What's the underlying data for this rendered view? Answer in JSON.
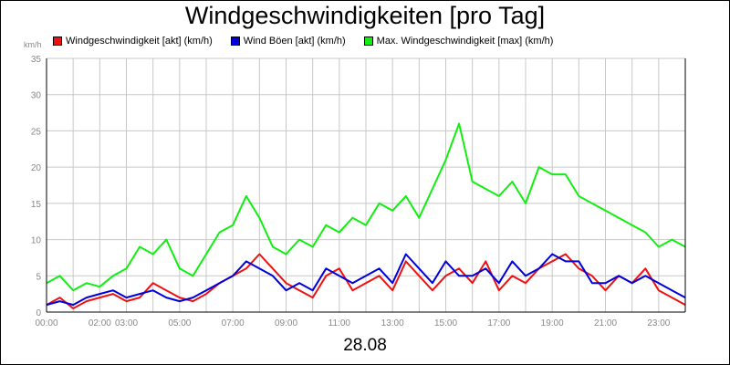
{
  "chart_data": {
    "type": "line",
    "title": "Windgeschwindigkeiten [pro Tag]",
    "ylabel": "km/h",
    "xlabel": "28.08",
    "ylim": [
      0,
      35
    ],
    "xlim": [
      0,
      24
    ],
    "yticks": [
      0,
      5,
      10,
      15,
      20,
      25,
      30,
      35
    ],
    "xtick_labels": [
      {
        "h": 0,
        "label": "00:00"
      },
      {
        "h": 2,
        "label": "02:00"
      },
      {
        "h": 3,
        "label": "03:00"
      },
      {
        "h": 5,
        "label": "05:00"
      },
      {
        "h": 7,
        "label": "07:00"
      },
      {
        "h": 9,
        "label": "09:00"
      },
      {
        "h": 11,
        "label": "11:00"
      },
      {
        "h": 13,
        "label": "13:00"
      },
      {
        "h": 15,
        "label": "15:00"
      },
      {
        "h": 17,
        "label": "17:00"
      },
      {
        "h": 19,
        "label": "19:00"
      },
      {
        "h": 21,
        "label": "21:00"
      },
      {
        "h": 23,
        "label": "23:00"
      }
    ],
    "grid": true,
    "legend_position": "top",
    "series": [
      {
        "name": "Windgeschwindigkeit [akt] (km/h)",
        "color": "#ee1111",
        "x": [
          0,
          0.5,
          1,
          1.5,
          2,
          2.5,
          3,
          3.5,
          4,
          4.5,
          5,
          5.5,
          6,
          6.5,
          7,
          7.5,
          8,
          8.5,
          9,
          9.5,
          10,
          10.5,
          11,
          11.5,
          12,
          12.5,
          13,
          13.5,
          14,
          14.5,
          15,
          15.5,
          16,
          16.5,
          17,
          17.5,
          18,
          18.5,
          19,
          19.5,
          20,
          20.5,
          21,
          21.5,
          22,
          22.5,
          23,
          23.5,
          24
        ],
        "y": [
          1,
          2,
          0.5,
          1.5,
          2,
          2.5,
          1.5,
          2,
          4,
          3,
          2,
          1.5,
          2.5,
          4,
          5,
          6,
          8,
          6,
          4,
          3,
          2,
          5,
          6,
          3,
          4,
          5,
          3,
          7,
          5,
          3,
          5,
          6,
          4,
          7,
          3,
          5,
          4,
          6,
          7,
          8,
          6,
          5,
          3,
          5,
          4,
          6,
          3,
          2,
          1
        ]
      },
      {
        "name": "Wind Böen [akt] (km/h)",
        "color": "#0000dd",
        "x": [
          0,
          0.5,
          1,
          1.5,
          2,
          2.5,
          3,
          3.5,
          4,
          4.5,
          5,
          5.5,
          6,
          6.5,
          7,
          7.5,
          8,
          8.5,
          9,
          9.5,
          10,
          10.5,
          11,
          11.5,
          12,
          12.5,
          13,
          13.5,
          14,
          14.5,
          15,
          15.5,
          16,
          16.5,
          17,
          17.5,
          18,
          18.5,
          19,
          19.5,
          20,
          20.5,
          21,
          21.5,
          22,
          22.5,
          23,
          23.5,
          24
        ],
        "y": [
          1,
          1.5,
          1,
          2,
          2.5,
          3,
          2,
          2.5,
          3,
          2,
          1.5,
          2,
          3,
          4,
          5,
          7,
          6,
          5,
          3,
          4,
          3,
          6,
          5,
          4,
          5,
          6,
          4,
          8,
          6,
          4,
          7,
          5,
          5,
          6,
          4,
          7,
          5,
          6,
          8,
          7,
          7,
          4,
          4,
          5,
          4,
          5,
          4,
          3,
          2
        ]
      },
      {
        "name": "Max. Windgeschwindigkeit [max] (km/h)",
        "color": "#11ee11",
        "x": [
          0,
          0.5,
          1,
          1.5,
          2,
          2.5,
          3,
          3.5,
          4,
          4.5,
          5,
          5.5,
          6,
          6.5,
          7,
          7.5,
          8,
          8.5,
          9,
          9.5,
          10,
          10.5,
          11,
          11.5,
          12,
          12.5,
          13,
          13.5,
          14,
          14.5,
          15,
          15.5,
          16,
          16.5,
          17,
          17.5,
          18,
          18.5,
          19,
          19.5,
          20,
          20.5,
          21,
          21.5,
          22,
          22.5,
          23,
          23.5,
          24
        ],
        "y": [
          4,
          5,
          3,
          4,
          3.5,
          5,
          6,
          9,
          8,
          10,
          6,
          5,
          8,
          11,
          12,
          16,
          13,
          9,
          8,
          10,
          9,
          12,
          11,
          13,
          12,
          15,
          14,
          16,
          13,
          17,
          21,
          26,
          18,
          17,
          16,
          18,
          15,
          20,
          19,
          19,
          16,
          15,
          14,
          13,
          12,
          11,
          9,
          10,
          9
        ]
      }
    ]
  }
}
